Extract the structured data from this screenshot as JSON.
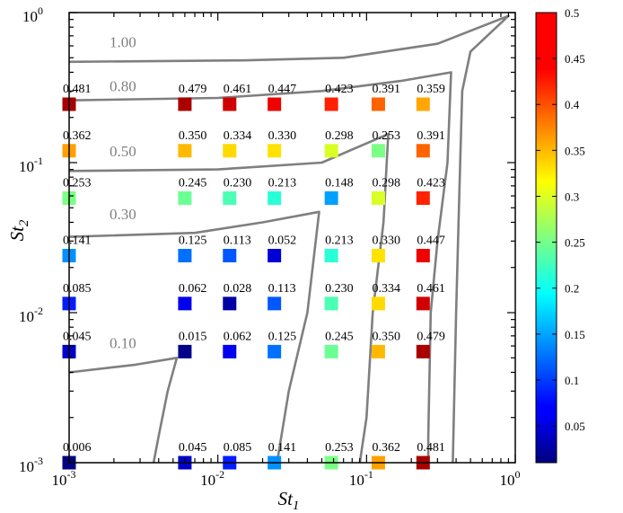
{
  "chart_data": {
    "type": "scatter",
    "title": "",
    "xlabel": "St",
    "xlabel_sub": "1",
    "ylabel": "St",
    "ylabel_sub": "2",
    "xscale": "log",
    "yscale": "log",
    "xlim": [
      0.001,
      1
    ],
    "ylim": [
      0.001,
      1
    ],
    "x_ticks": [
      {
        "base": "10",
        "exp": "-3"
      },
      {
        "base": "10",
        "exp": "-2"
      },
      {
        "base": "10",
        "exp": "-1"
      },
      {
        "base": "10",
        "exp": "0"
      }
    ],
    "y_ticks": [
      {
        "base": "10",
        "exp": "-3"
      },
      {
        "base": "10",
        "exp": "-2"
      },
      {
        "base": "10",
        "exp": "-1"
      },
      {
        "base": "10",
        "exp": "0"
      }
    ],
    "x_positions": [
      0.001,
      0.006,
      0.012,
      0.024,
      0.058,
      0.12,
      0.24
    ],
    "y_positions": [
      0.001,
      0.0055,
      0.0115,
      0.024,
      0.058,
      0.12,
      0.245
    ],
    "points": [
      {
        "xi": 0,
        "yi": 6,
        "label": "0.481",
        "value": 0.481
      },
      {
        "xi": 1,
        "yi": 6,
        "label": "0.479",
        "value": 0.479
      },
      {
        "xi": 2,
        "yi": 6,
        "label": "0.461",
        "value": 0.461
      },
      {
        "xi": 3,
        "yi": 6,
        "label": "0.447",
        "value": 0.447
      },
      {
        "xi": 4,
        "yi": 6,
        "label": "0.423",
        "value": 0.423
      },
      {
        "xi": 5,
        "yi": 6,
        "label": "0.391",
        "value": 0.391
      },
      {
        "xi": 6,
        "yi": 6,
        "label": "0.359",
        "value": 0.359
      },
      {
        "xi": 0,
        "yi": 5,
        "label": "0.362",
        "value": 0.362
      },
      {
        "xi": 1,
        "yi": 5,
        "label": "0.350",
        "value": 0.35
      },
      {
        "xi": 2,
        "yi": 5,
        "label": "0.334",
        "value": 0.334
      },
      {
        "xi": 3,
        "yi": 5,
        "label": "0.330",
        "value": 0.33
      },
      {
        "xi": 4,
        "yi": 5,
        "label": "0.298",
        "value": 0.298
      },
      {
        "xi": 5,
        "yi": 5,
        "label": "0.253",
        "value": 0.253
      },
      {
        "xi": 6,
        "yi": 5,
        "label": "0.391",
        "value": 0.391
      },
      {
        "xi": 0,
        "yi": 4,
        "label": "0.253",
        "value": 0.253
      },
      {
        "xi": 1,
        "yi": 4,
        "label": "0.245",
        "value": 0.245
      },
      {
        "xi": 2,
        "yi": 4,
        "label": "0.230",
        "value": 0.23
      },
      {
        "xi": 3,
        "yi": 4,
        "label": "0.213",
        "value": 0.213
      },
      {
        "xi": 4,
        "yi": 4,
        "label": "0.148",
        "value": 0.148
      },
      {
        "xi": 5,
        "yi": 4,
        "label": "0.298",
        "value": 0.298
      },
      {
        "xi": 6,
        "yi": 4,
        "label": "0.423",
        "value": 0.423
      },
      {
        "xi": 0,
        "yi": 3,
        "label": "0.141",
        "value": 0.141
      },
      {
        "xi": 1,
        "yi": 3,
        "label": "0.125",
        "value": 0.125
      },
      {
        "xi": 2,
        "yi": 3,
        "label": "0.113",
        "value": 0.113
      },
      {
        "xi": 3,
        "yi": 3,
        "label": "0.052",
        "value": 0.052
      },
      {
        "xi": 4,
        "yi": 3,
        "label": "0.213",
        "value": 0.213
      },
      {
        "xi": 5,
        "yi": 3,
        "label": "0.330",
        "value": 0.33
      },
      {
        "xi": 6,
        "yi": 3,
        "label": "0.447",
        "value": 0.447
      },
      {
        "xi": 0,
        "yi": 2,
        "label": "0.085",
        "value": 0.085
      },
      {
        "xi": 1,
        "yi": 2,
        "label": "0.062",
        "value": 0.062
      },
      {
        "xi": 2,
        "yi": 2,
        "label": "0.028",
        "value": 0.028
      },
      {
        "xi": 3,
        "yi": 2,
        "label": "0.113",
        "value": 0.113
      },
      {
        "xi": 4,
        "yi": 2,
        "label": "0.230",
        "value": 0.23
      },
      {
        "xi": 5,
        "yi": 2,
        "label": "0.334",
        "value": 0.334
      },
      {
        "xi": 6,
        "yi": 2,
        "label": "0.461",
        "value": 0.461
      },
      {
        "xi": 0,
        "yi": 1,
        "label": "0.045",
        "value": 0.045
      },
      {
        "xi": 1,
        "yi": 1,
        "label": "0.015",
        "value": 0.015
      },
      {
        "xi": 2,
        "yi": 1,
        "label": "0.062",
        "value": 0.062
      },
      {
        "xi": 3,
        "yi": 1,
        "label": "0.125",
        "value": 0.125
      },
      {
        "xi": 4,
        "yi": 1,
        "label": "0.245",
        "value": 0.245
      },
      {
        "xi": 5,
        "yi": 1,
        "label": "0.350",
        "value": 0.35
      },
      {
        "xi": 6,
        "yi": 1,
        "label": "0.479",
        "value": 0.479
      },
      {
        "xi": 0,
        "yi": 0,
        "label": "0.006",
        "value": 0.006
      },
      {
        "xi": 1,
        "yi": 0,
        "label": "0.045",
        "value": 0.045
      },
      {
        "xi": 2,
        "yi": 0,
        "label": "0.085",
        "value": 0.085
      },
      {
        "xi": 3,
        "yi": 0,
        "label": "0.141",
        "value": 0.141
      },
      {
        "xi": 4,
        "yi": 0,
        "label": "0.253",
        "value": 0.253
      },
      {
        "xi": 5,
        "yi": 0,
        "label": "0.362",
        "value": 0.362
      },
      {
        "xi": 6,
        "yi": 0,
        "label": "0.481",
        "value": 0.481
      }
    ],
    "contours": [
      {
        "label": "1.00",
        "label_at": [
          0.0023,
          0.59
        ],
        "points": [
          [
            0.001,
            0.47
          ],
          [
            0.015,
            0.48
          ],
          [
            0.07,
            0.5
          ],
          [
            0.3,
            0.62
          ],
          [
            0.9,
            0.95
          ],
          [
            0.5,
            0.55
          ],
          [
            0.44,
            0.3
          ],
          [
            0.42,
            0.06
          ],
          [
            0.4,
            0.01
          ],
          [
            0.38,
            0.001
          ]
        ]
      },
      {
        "label": "0.80",
        "label_at": [
          0.0023,
          0.3
        ],
        "points": [
          [
            0.001,
            0.26
          ],
          [
            0.01,
            0.27
          ],
          [
            0.05,
            0.3
          ],
          [
            0.17,
            0.35
          ],
          [
            0.37,
            0.4
          ],
          [
            0.35,
            0.1
          ],
          [
            0.3,
            0.03
          ],
          [
            0.27,
            0.01
          ],
          [
            0.26,
            0.0015
          ],
          [
            0.26,
            0.001
          ]
        ]
      },
      {
        "label": "0.50",
        "label_at": [
          0.0023,
          0.11
        ],
        "points": [
          [
            0.001,
            0.088
          ],
          [
            0.01,
            0.09
          ],
          [
            0.05,
            0.1
          ],
          [
            0.14,
            0.155
          ],
          [
            0.13,
            0.04
          ],
          [
            0.11,
            0.01
          ],
          [
            0.1,
            0.002
          ],
          [
            0.09,
            0.001
          ]
        ]
      },
      {
        "label": "0.30",
        "label_at": [
          0.0023,
          0.042
        ],
        "points": [
          [
            0.001,
            0.032
          ],
          [
            0.007,
            0.034
          ],
          [
            0.02,
            0.04
          ],
          [
            0.048,
            0.047
          ],
          [
            0.04,
            0.01
          ],
          [
            0.03,
            0.003
          ],
          [
            0.025,
            0.001
          ]
        ]
      },
      {
        "label": "0.10",
        "label_at": [
          0.0023,
          0.0058
        ],
        "points": [
          [
            0.001,
            0.004
          ],
          [
            0.0028,
            0.0045
          ],
          [
            0.0053,
            0.005
          ],
          [
            0.0046,
            0.003
          ],
          [
            0.004,
            0.0015
          ],
          [
            0.0037,
            0.001
          ]
        ]
      }
    ],
    "colorbar": {
      "min": 0.01,
      "max": 0.5,
      "ticks": [
        {
          "value": 0.5,
          "label": "0.5"
        },
        {
          "value": 0.45,
          "label": "0.45"
        },
        {
          "value": 0.4,
          "label": "0.4"
        },
        {
          "value": 0.35,
          "label": "0.35"
        },
        {
          "value": 0.3,
          "label": "0.3"
        },
        {
          "value": 0.25,
          "label": "0.25"
        },
        {
          "value": 0.2,
          "label": "0.2"
        },
        {
          "value": 0.15,
          "label": "0.15"
        },
        {
          "value": 0.1,
          "label": "0.1"
        },
        {
          "value": 0.05,
          "label": "0.05"
        }
      ]
    },
    "colors": {
      "contour": "#7f7f7f",
      "axis": "#000000"
    },
    "grid": false
  }
}
